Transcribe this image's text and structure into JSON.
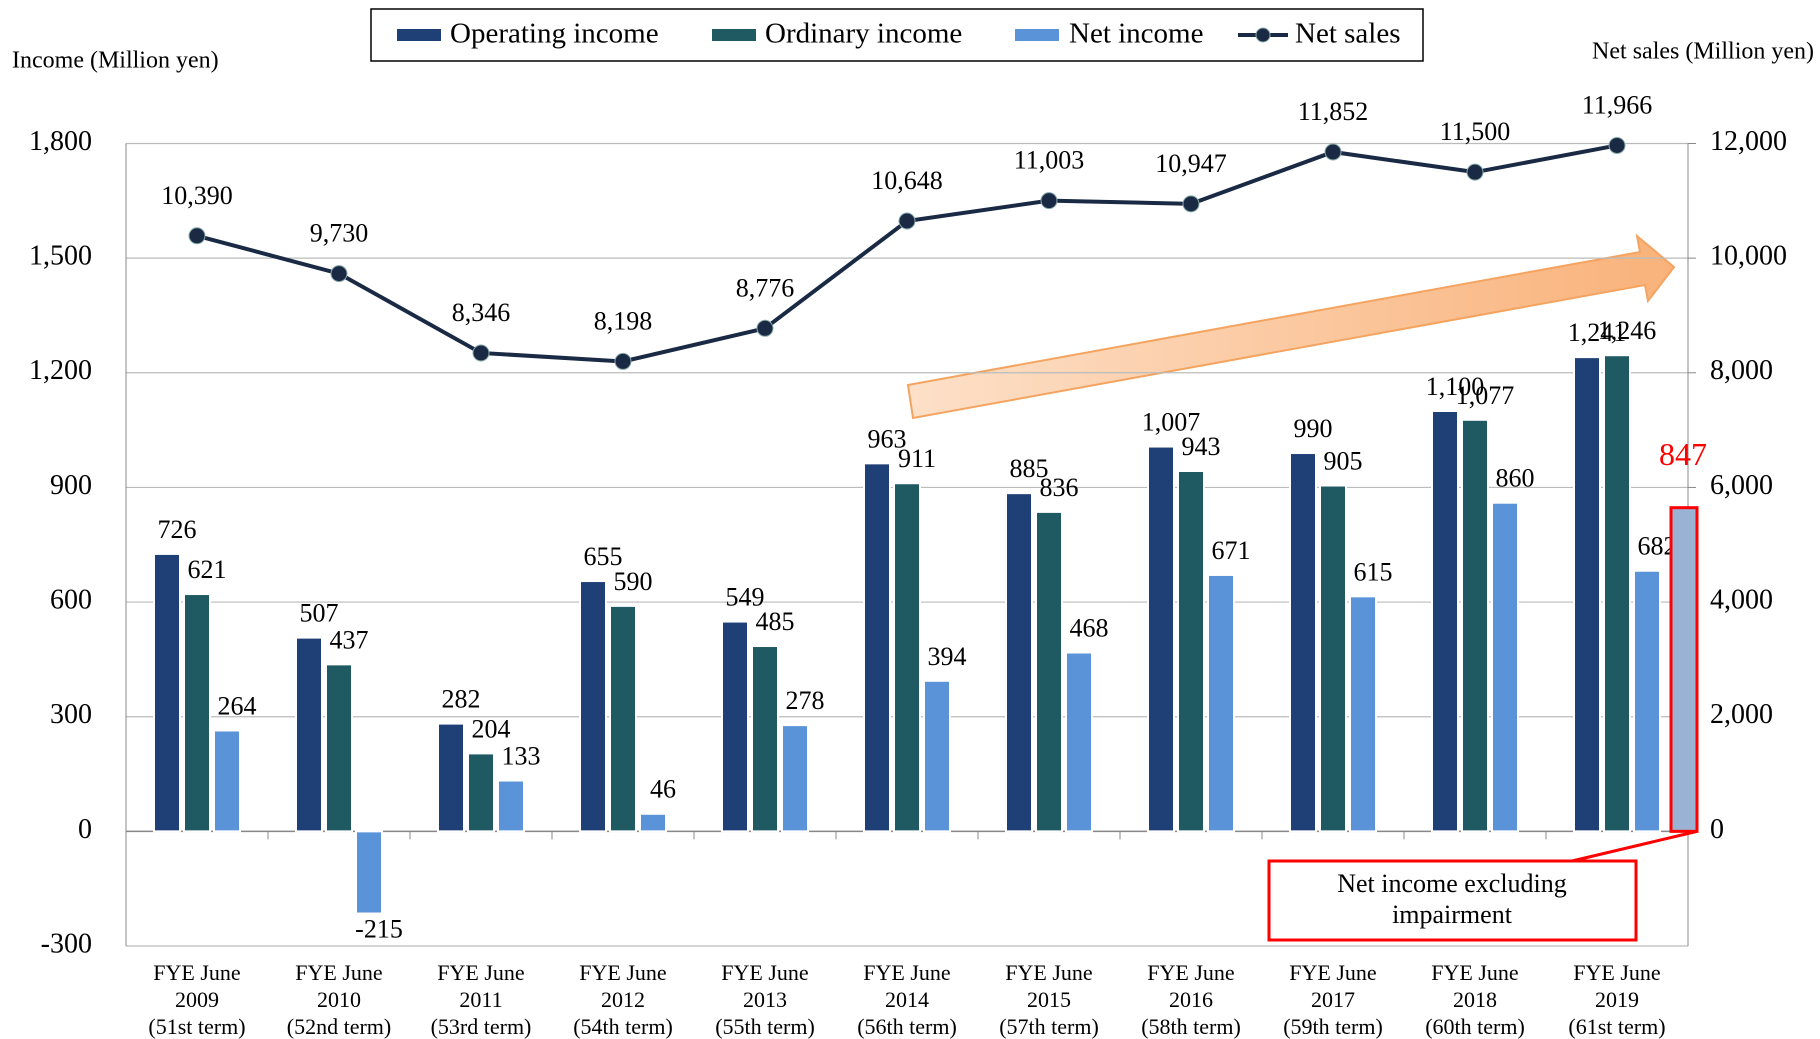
{
  "chart_data": {
    "type": "bar",
    "y_label": "Income (Million yen)",
    "y2_label": "Net sales (Million yen)",
    "categories": [
      [
        "FYE June",
        "2009",
        "(51st term)"
      ],
      [
        "FYE June",
        "2010",
        "(52nd term)"
      ],
      [
        "FYE June",
        "2011",
        "(53rd term)"
      ],
      [
        "FYE June",
        "2012",
        "(54th term)"
      ],
      [
        "FYE June",
        "2013",
        "(55th term)"
      ],
      [
        "FYE June",
        "2014",
        "(56th term)"
      ],
      [
        "FYE June",
        "2015",
        "(57th term)"
      ],
      [
        "FYE June",
        "2016",
        "(58th term)"
      ],
      [
        "FYE June",
        "2017",
        "(59th term)"
      ],
      [
        "FYE June",
        "2018",
        "(60th term)"
      ],
      [
        "FYE June",
        "2019",
        "(61st term)"
      ]
    ],
    "series": [
      {
        "name": "Operating income",
        "type": "bar",
        "color": "#1f3f77",
        "values": [
          726,
          507,
          282,
          655,
          549,
          963,
          885,
          1007,
          990,
          1100,
          1241
        ],
        "value_labels": [
          "726",
          "507",
          "282",
          "655",
          "549",
          "963",
          "885",
          "1,007",
          "990",
          "1,100",
          "1,241"
        ]
      },
      {
        "name": "Ordinary income",
        "type": "bar",
        "color": "#1f5a63",
        "values": [
          621,
          437,
          204,
          590,
          485,
          911,
          836,
          943,
          905,
          1077,
          1246
        ],
        "value_labels": [
          "621",
          "437",
          "204",
          "590",
          "485",
          "911",
          "836",
          "943",
          "905",
          "1,077",
          "1,246"
        ]
      },
      {
        "name": "Net income",
        "type": "bar",
        "color": "#5b93d8",
        "values": [
          264,
          -215,
          133,
          46,
          278,
          394,
          468,
          671,
          615,
          860,
          682
        ]
      },
      {
        "name": "Net sales",
        "type": "line",
        "axis": "y2",
        "color": "#1a2a44",
        "values": [
          10390,
          9730,
          8346,
          8198,
          8776,
          10648,
          11003,
          10947,
          11852,
          11500,
          11966
        ],
        "value_labels": [
          "10,390",
          "9,730",
          "8,346",
          "8,198",
          "8,776",
          "10,648",
          "11,003",
          "10,947",
          "11,852",
          "11,500",
          "11,966"
        ]
      }
    ],
    "annotation": {
      "text": [
        "Net income excluding",
        "impairment"
      ],
      "value": 847,
      "color": "#ff0000",
      "fill": "#9ab3d5"
    },
    "ylim": [
      -300,
      1800
    ],
    "yticks": [
      -300,
      0,
      {
        "value": 300,
        "label": "300"
      },
      600,
      900,
      {
        "value": 1200,
        "label": "1,200"
      },
      {
        "value": 1500,
        "label": "1,500"
      },
      {
        "value": 1800,
        "label": "1,800"
      }
    ],
    "y2lim": [
      -2000,
      12000
    ],
    "y2ticks": [
      0,
      {
        "value": 2000,
        "label": "2,000"
      },
      {
        "value": 4000,
        "label": "4,000"
      },
      {
        "value": 6000,
        "label": "6,000"
      },
      {
        "value": 8000,
        "label": "8,000"
      },
      {
        "value": 10000,
        "label": "10,000"
      },
      {
        "value": 12000,
        "label": "12,000"
      }
    ],
    "grid": true
  }
}
